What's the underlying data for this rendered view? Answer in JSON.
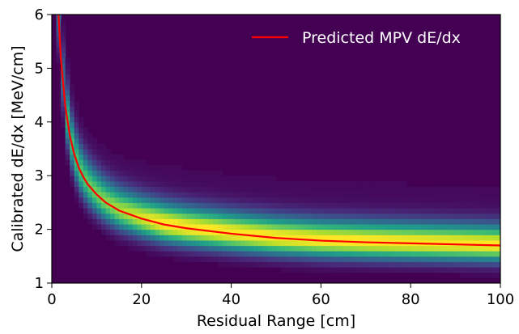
{
  "chart_data": {
    "type": "heatmap",
    "xlabel": "Residual Range [cm]",
    "ylabel": "Calibrated dE/dx [MeV/cm]",
    "xlim": [
      0,
      100
    ],
    "ylim": [
      1,
      6
    ],
    "x_ticks": [
      "0",
      "20",
      "40",
      "60",
      "80",
      "100"
    ],
    "y_ticks": [
      "1",
      "2",
      "3",
      "4",
      "5",
      "6"
    ],
    "grid": false,
    "legend_position": "top-right",
    "colormap": "viridis",
    "heatmap_bins": {
      "x_bin_width": 1,
      "y_bin_width": 0.1
    },
    "series": [
      {
        "name": "Predicted MPV dE/dx",
        "color": "#ff0000",
        "x": [
          1.5,
          2,
          3,
          4,
          5,
          6,
          7,
          8,
          10,
          12,
          15,
          20,
          25,
          30,
          40,
          50,
          60,
          70,
          80,
          90,
          100
        ],
        "y": [
          6.0,
          5.2,
          4.3,
          3.75,
          3.4,
          3.15,
          2.98,
          2.84,
          2.65,
          2.5,
          2.35,
          2.2,
          2.09,
          2.02,
          1.92,
          1.84,
          1.79,
          1.76,
          1.74,
          1.72,
          1.7
        ]
      }
    ]
  }
}
